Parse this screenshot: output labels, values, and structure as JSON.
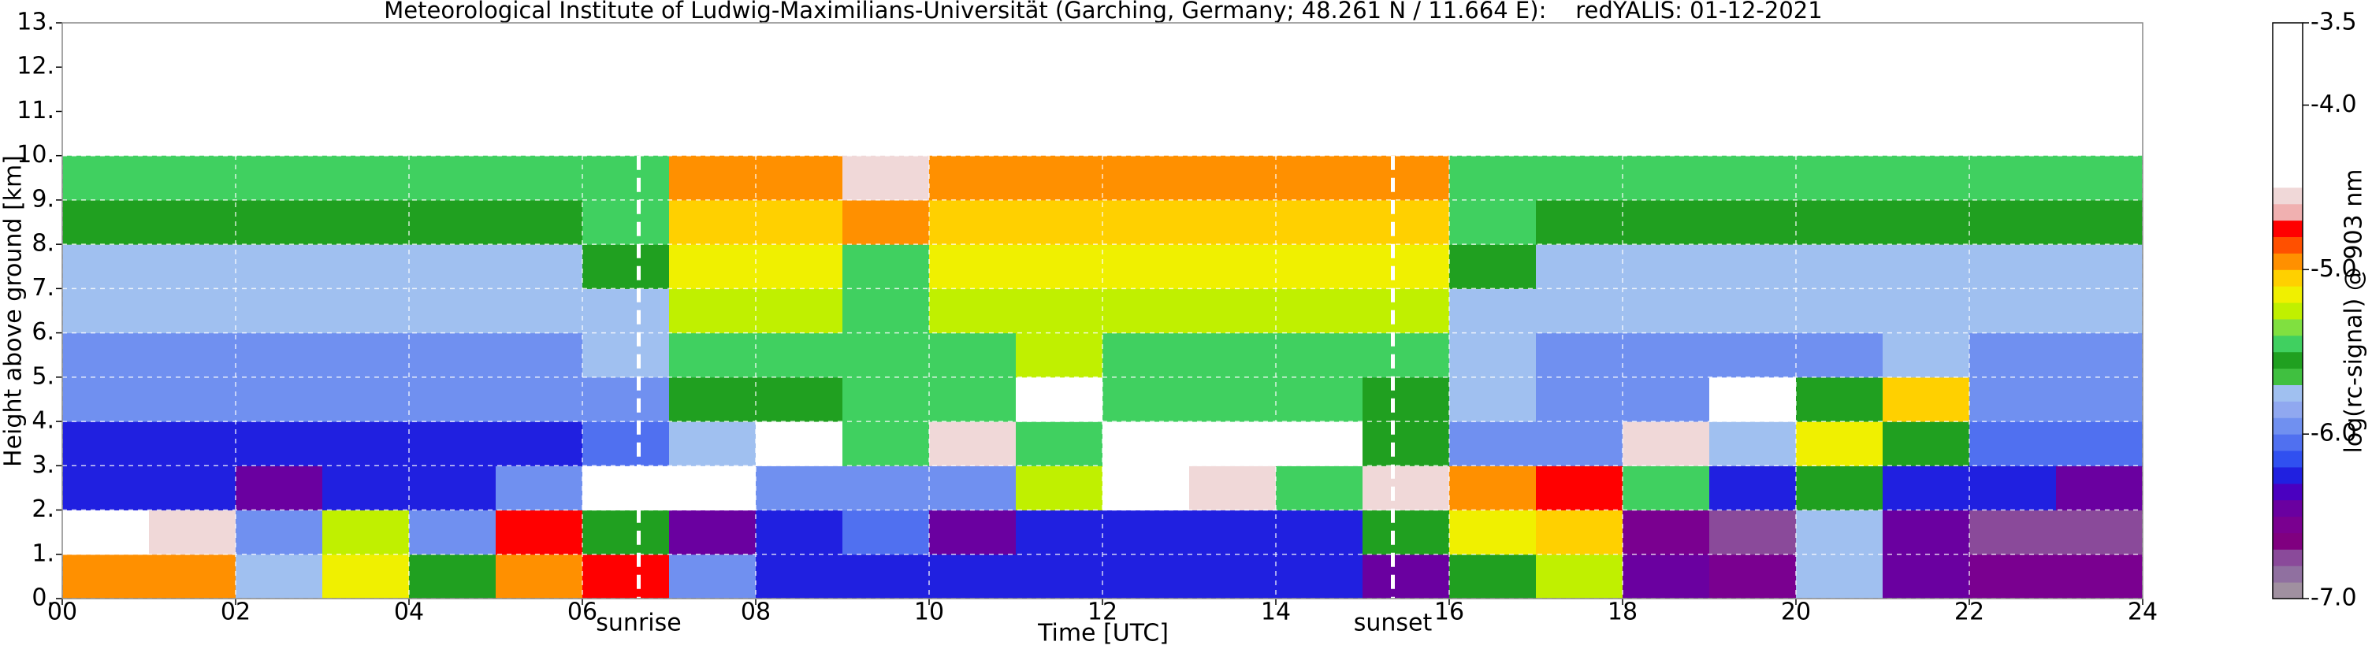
{
  "chart_data": {
    "type": "heatmap",
    "title": "Meteorological Institute of Ludwig-Maximilians-Universität (Garching, Germany; 48.261 N / 11.664 E):    redYALIS: 01-12-2021",
    "x_label": "Time [UTC]",
    "y_label": "Height above ground [km]",
    "xlim": [
      0,
      24
    ],
    "ylim": [
      0,
      13
    ],
    "xticks": [
      {
        "value": 0,
        "label": "00"
      },
      {
        "value": 2,
        "label": "02"
      },
      {
        "value": 4,
        "label": "04"
      },
      {
        "value": 6,
        "label": "06"
      },
      {
        "value": 8,
        "label": "08"
      },
      {
        "value": 10,
        "label": "10"
      },
      {
        "value": 12,
        "label": "12"
      },
      {
        "value": 14,
        "label": "14"
      },
      {
        "value": 16,
        "label": "16"
      },
      {
        "value": 18,
        "label": "18"
      },
      {
        "value": 20,
        "label": "20"
      },
      {
        "value": 22,
        "label": "22"
      },
      {
        "value": 24,
        "label": "24"
      }
    ],
    "yticks": [
      {
        "value": 0,
        "label": "0."
      },
      {
        "value": 1,
        "label": "1."
      },
      {
        "value": 2,
        "label": "2."
      },
      {
        "value": 3,
        "label": "3."
      },
      {
        "value": 4,
        "label": "4."
      },
      {
        "value": 5,
        "label": "5."
      },
      {
        "value": 6,
        "label": "6."
      },
      {
        "value": 7,
        "label": "7."
      },
      {
        "value": 8,
        "label": "8."
      },
      {
        "value": 9,
        "label": "9."
      },
      {
        "value": 10,
        "label": "10."
      },
      {
        "value": 11,
        "label": "11."
      },
      {
        "value": 12,
        "label": "12."
      },
      {
        "value": 13,
        "label": "13."
      }
    ],
    "grid": true,
    "x": [
      0,
      1,
      2,
      3,
      4,
      5,
      6,
      7,
      8,
      9,
      10,
      11,
      12,
      13,
      14,
      15,
      16,
      17,
      18,
      19,
      20,
      21,
      22,
      23,
      24
    ],
    "y": [
      0,
      1,
      2,
      3,
      4,
      5,
      6,
      7,
      8,
      9,
      10
    ],
    "z": [
      [
        -5.0,
        -5.0,
        -5.8,
        -5.2,
        -5.6,
        -4.9,
        -4.8,
        -6.0,
        -6.3,
        -6.2,
        -6.3,
        -6.3,
        -6.3,
        -6.3,
        -6.3,
        -6.4,
        -5.6,
        -5.3,
        -6.5,
        -6.6,
        -5.8,
        -6.5,
        -6.6,
        -6.6
      ],
      [
        -4.4,
        -4.6,
        -5.9,
        -5.3,
        -5.9,
        -4.8,
        -5.6,
        -6.4,
        -6.2,
        -6.1,
        -6.4,
        -6.3,
        -6.3,
        -6.3,
        -6.2,
        -5.6,
        -5.2,
        -5.1,
        -6.6,
        -6.7,
        -5.7,
        -6.5,
        -6.7,
        -6.7
      ],
      [
        -6.3,
        -6.2,
        -6.4,
        -6.3,
        -6.3,
        -5.9,
        -4.4,
        -4.5,
        -5.9,
        -5.9,
        -6.0,
        -5.3,
        -4.5,
        -4.6,
        -5.4,
        -4.6,
        -5.0,
        -4.8,
        -5.5,
        -6.3,
        -5.6,
        -6.2,
        -6.3,
        -6.4
      ],
      [
        -6.2,
        -6.2,
        -6.2,
        -6.2,
        -6.2,
        -6.2,
        -6.1,
        -5.8,
        -4.4,
        -5.5,
        -4.6,
        -5.5,
        -4.4,
        -4.5,
        -4.4,
        -5.6,
        -5.9,
        -6.0,
        -4.6,
        -5.7,
        -5.2,
        -5.6,
        -6.1,
        -6.1
      ],
      [
        -6.0,
        -6.0,
        -6.0,
        -6.0,
        -6.0,
        -6.0,
        -5.9,
        -5.6,
        -5.6,
        -5.5,
        -5.5,
        -4.4,
        -5.5,
        -5.5,
        -5.5,
        -5.6,
        -5.8,
        -5.9,
        -5.9,
        -4.5,
        -5.6,
        -5.1,
        -6.0,
        -6.0
      ],
      [
        -5.9,
        -5.9,
        -5.9,
        -5.9,
        -5.9,
        -5.9,
        -5.8,
        -5.4,
        -5.4,
        -5.5,
        -5.4,
        -5.3,
        -5.4,
        -5.4,
        -5.4,
        -5.5,
        -5.8,
        -5.9,
        -5.9,
        -5.9,
        -5.9,
        -5.8,
        -5.9,
        -5.9
      ],
      [
        -5.8,
        -5.8,
        -5.8,
        -5.8,
        -5.8,
        -5.8,
        -5.7,
        -5.3,
        -5.3,
        -5.5,
        -5.3,
        -5.3,
        -5.3,
        -5.3,
        -5.3,
        -5.3,
        -5.7,
        -5.8,
        -5.8,
        -5.8,
        -5.8,
        -5.8,
        -5.8,
        -5.8
      ],
      [
        -5.7,
        -5.7,
        -5.7,
        -5.7,
        -5.7,
        -5.7,
        -5.6,
        -5.2,
        -5.2,
        -5.4,
        -5.2,
        -5.2,
        -5.2,
        -5.2,
        -5.2,
        -5.2,
        -5.6,
        -5.7,
        -5.7,
        -5.7,
        -5.7,
        -5.7,
        -5.7,
        -5.7
      ],
      [
        -5.6,
        -5.6,
        -5.6,
        -5.6,
        -5.6,
        -5.6,
        -5.5,
        -5.1,
        -5.1,
        -5.0,
        -5.1,
        -5.1,
        -5.1,
        -5.1,
        -5.1,
        -5.1,
        -5.5,
        -5.6,
        -5.6,
        -5.6,
        -5.6,
        -5.6,
        -5.6,
        -5.6
      ],
      [
        -5.5,
        -5.5,
        -5.5,
        -5.5,
        -5.5,
        -5.5,
        -5.4,
        -5.0,
        -5.0,
        -4.6,
        -5.0,
        -5.0,
        -5.0,
        -5.0,
        -5.0,
        -5.0,
        -5.4,
        -5.5,
        -5.5,
        -5.5,
        -5.5,
        -5.5,
        -5.5,
        -5.5
      ]
    ],
    "annotations": [
      {
        "text": "sunrise",
        "x": 6.65
      },
      {
        "text": "sunset",
        "x": 15.35
      }
    ],
    "colorbar": {
      "label": "log(rc-signal) @ 903 nm",
      "lim": [
        -7,
        -3.5
      ],
      "ticks": [
        {
          "value": -7,
          "label": "-7.0"
        },
        {
          "value": -6,
          "label": "-6.0"
        },
        {
          "value": -5,
          "label": "-5.0"
        },
        {
          "value": -4,
          "label": "-4.0"
        },
        {
          "value": -3.5,
          "label": "-3.5"
        }
      ],
      "colors": [
        "#a090a0",
        "#9070a0",
        "#8a4a9a",
        "#800080",
        "#7a0090",
        "#6a00a0",
        "#4a00c0",
        "#2020e0",
        "#3050f0",
        "#5070f0",
        "#7090f0",
        "#90a8f0",
        "#a0c0f0",
        "#40c040",
        "#20a020",
        "#40d060",
        "#80e040",
        "#c0f000",
        "#f0f000",
        "#ffd000",
        "#ff9000",
        "#ff5000",
        "#ff0000",
        "#f0b0b0",
        "#f0d8d8",
        "#ffffff",
        "#ffffff",
        "#ffffff",
        "#ffffff",
        "#ffffff",
        "#ffffff",
        "#ffffff",
        "#ffffff",
        "#ffffff",
        "#ffffff"
      ]
    }
  }
}
